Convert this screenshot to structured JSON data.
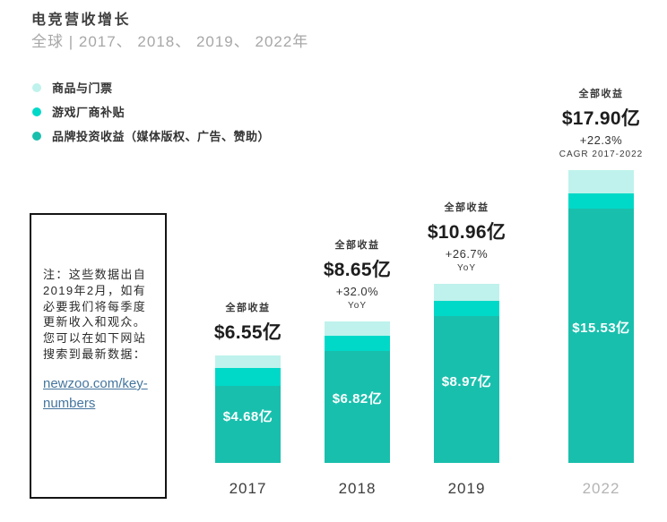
{
  "header": {
    "title": "电竞营收增长",
    "subtitle": "全球 | 2017、 2018、 2019、 2022年"
  },
  "legend": {
    "items": [
      {
        "name": "merch-tickets",
        "label": "商品与门票",
        "color": "#bff2ec"
      },
      {
        "name": "publisher-fees",
        "label": "游戏厂商补贴",
        "color": "#00d9c8"
      },
      {
        "name": "brand-investment",
        "label": "品牌投资收益（媒体版权、广告、赞助）",
        "color": "#19bfad"
      }
    ]
  },
  "note": {
    "lines": [
      "注：这些数据出自",
      "2019年2月，如有",
      "必要我们将每季度",
      "更新收入和观众。",
      "您可以在如下网站",
      "搜索到最新数据："
    ],
    "link_lines": [
      "newzoo.com/key-",
      "numbers"
    ]
  },
  "chart_data": {
    "type": "bar",
    "stacked": true,
    "title": "电竞营收增长",
    "subtitle": "全球 | 2017、 2018、 2019、 2022年",
    "unit": "$亿 (美元)",
    "grid": false,
    "legend_position": "top-left",
    "ylim": [
      0,
      18.5
    ],
    "categories": [
      "2017",
      "2018",
      "2019",
      "2022"
    ],
    "series": [
      {
        "name": "品牌投资收益（媒体版权、广告、赞助）",
        "color": "#19bfad",
        "values": [
          4.68,
          6.82,
          8.97,
          15.53
        ]
      },
      {
        "name": "游戏厂商补贴",
        "color": "#00d9c8",
        "values": [
          1.1,
          0.95,
          0.95,
          0.95
        ]
      },
      {
        "name": "商品与门票",
        "color": "#bff2ec",
        "values": [
          0.77,
          0.88,
          1.04,
          1.42
        ]
      }
    ],
    "totals": [
      6.55,
      8.65,
      10.96,
      17.9
    ],
    "bars": [
      {
        "year": "2017",
        "total_caption": "全部收益",
        "total_label": "$6.55亿",
        "change": "",
        "change_caption": "",
        "brand_label": "$4.68亿",
        "year_color": "#3d3d3d"
      },
      {
        "year": "2018",
        "total_caption": "全部收益",
        "total_label": "$8.65亿",
        "change": "+32.0%",
        "change_caption": "YoY",
        "brand_label": "$6.82亿",
        "year_color": "#3d3d3d"
      },
      {
        "year": "2019",
        "total_caption": "全部收益",
        "total_label": "$10.96亿",
        "change": "+26.7%",
        "change_caption": "YoY",
        "brand_label": "$8.97亿",
        "year_color": "#3d3d3d"
      },
      {
        "year": "2022",
        "total_caption": "全部收益",
        "total_label": "$17.90亿",
        "change": "+22.3%",
        "change_caption": "CAGR 2017-2022",
        "brand_label": "$15.53亿",
        "year_color": "#b4b4b4"
      }
    ]
  }
}
